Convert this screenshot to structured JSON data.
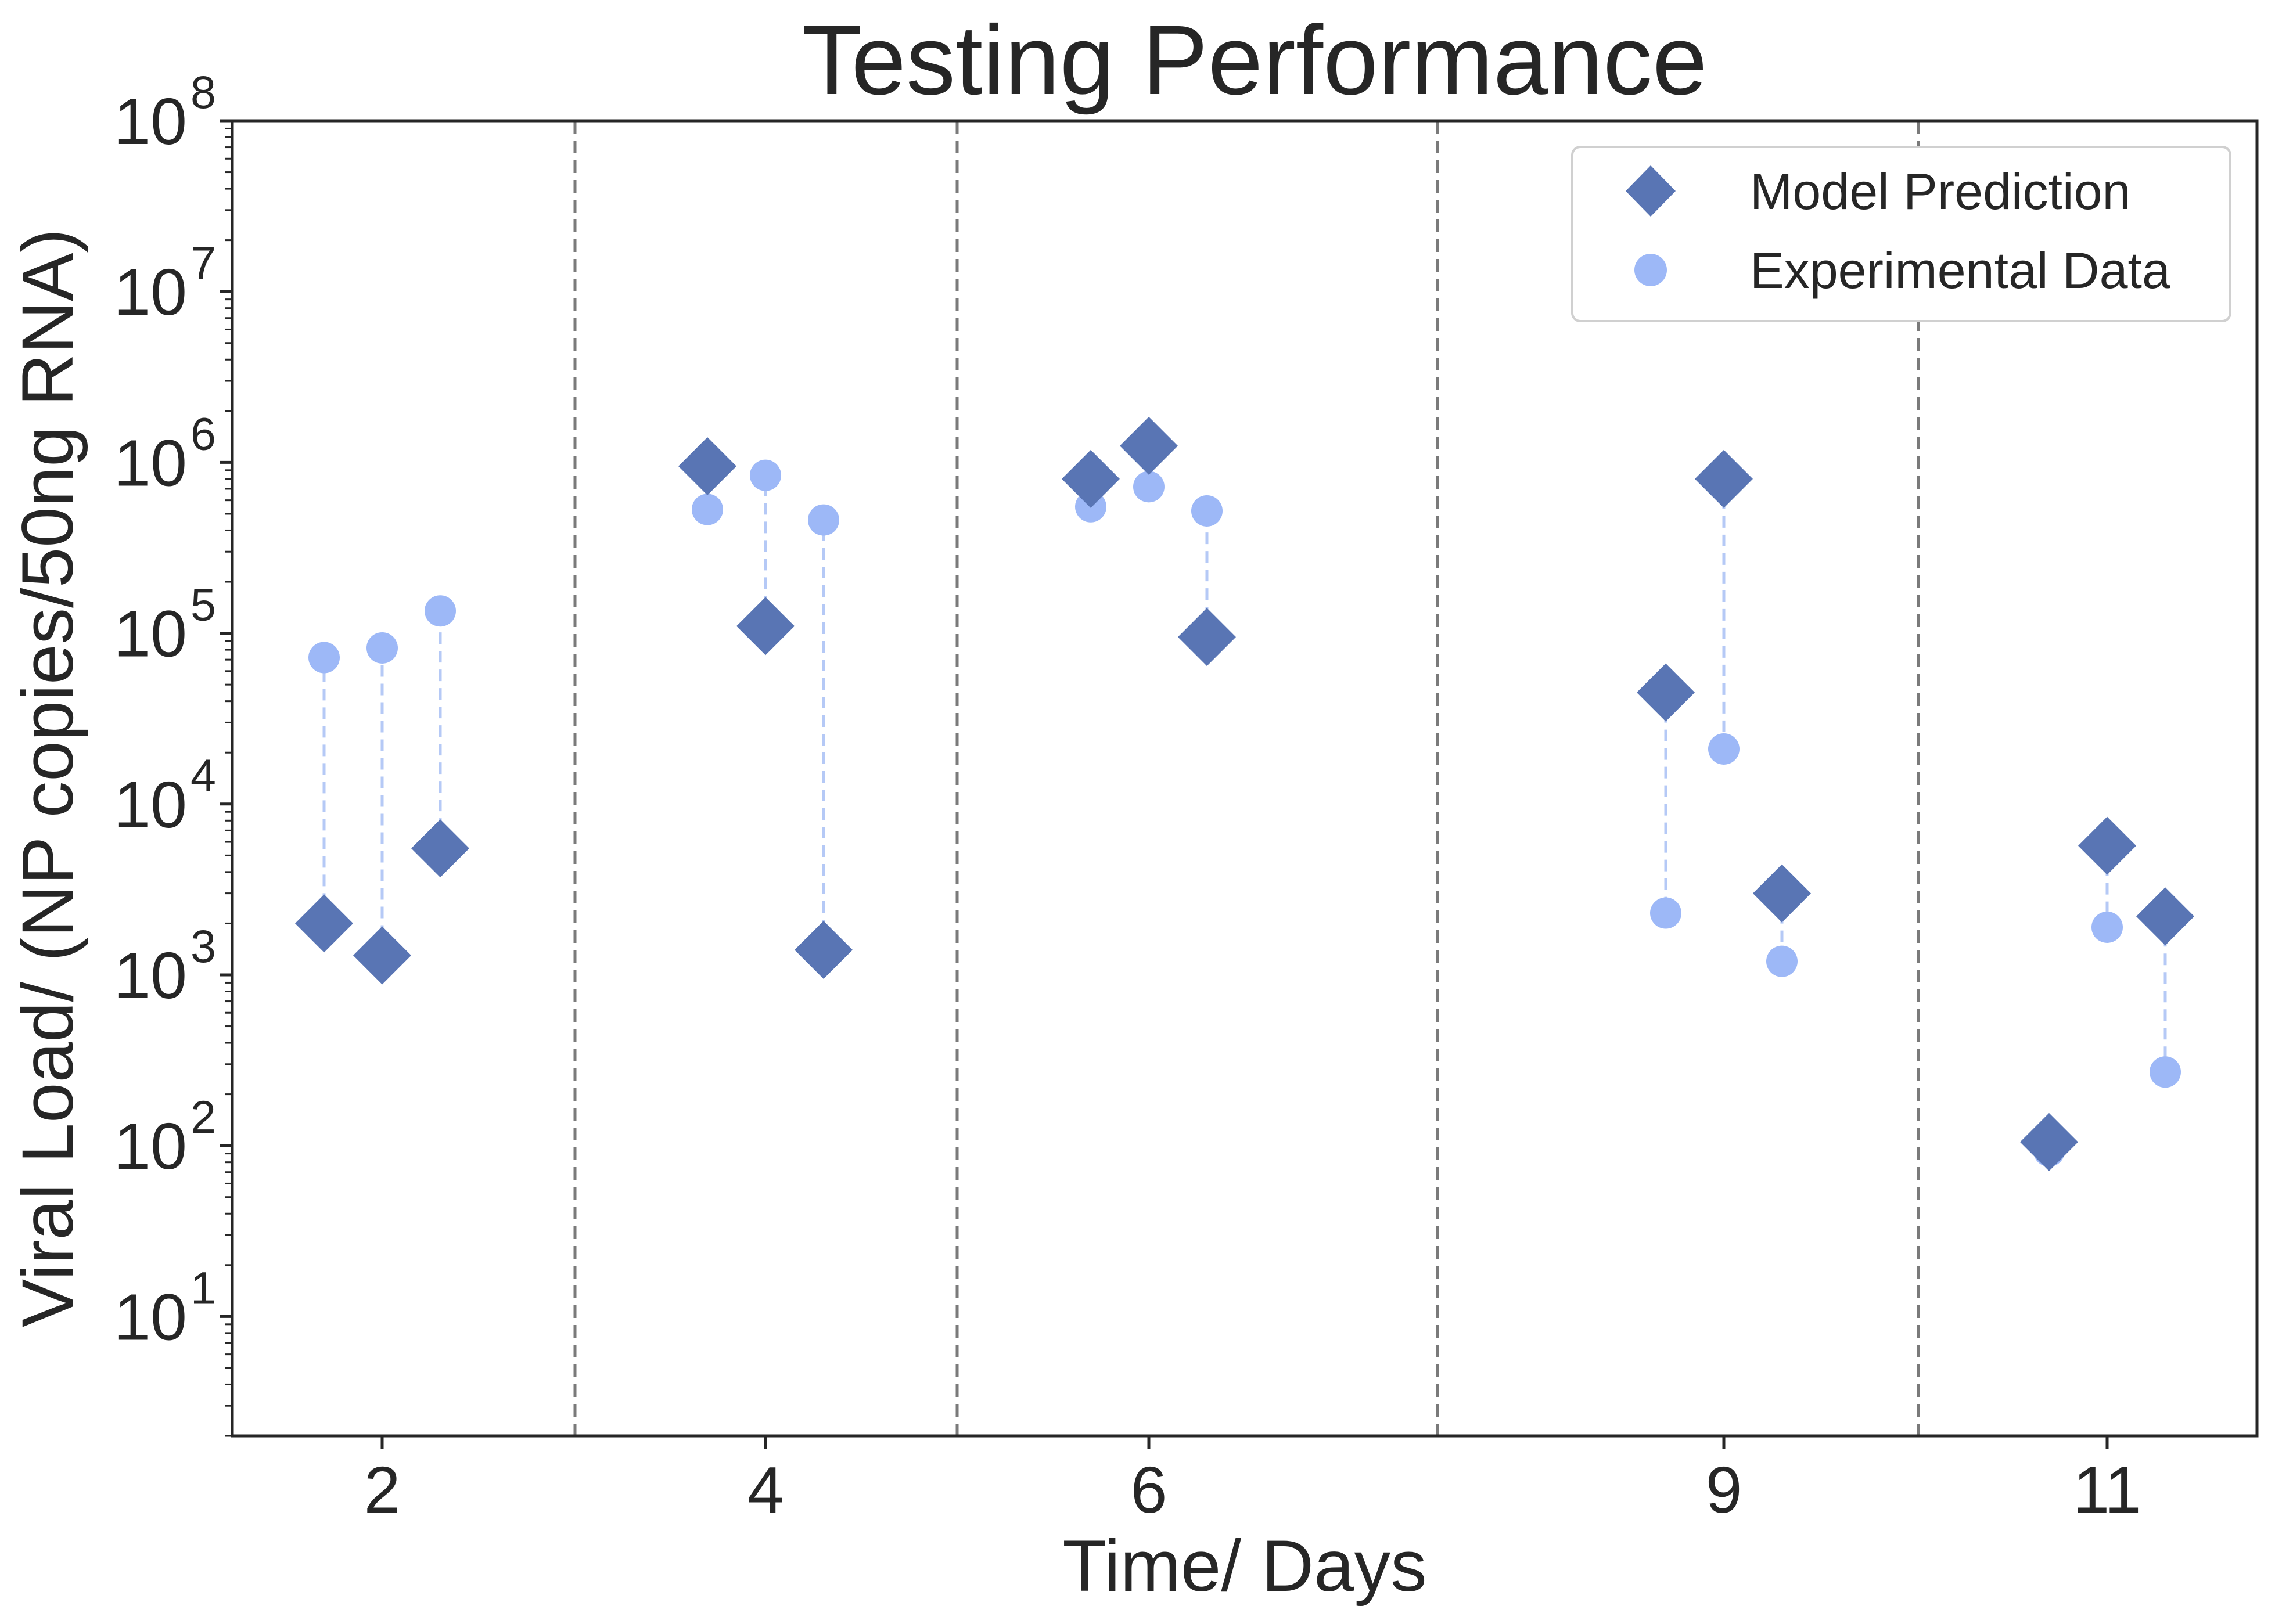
{
  "chart_data": {
    "type": "scatter",
    "title": "Testing Performance",
    "xlabel": "Time/ Days",
    "ylabel": "Viral Load/ (NP copies/50ng RNA)",
    "yscale": "log",
    "ylim": [
      2,
      100000000
    ],
    "y_tick_base": "10",
    "y_tick_exponents": [
      "1",
      "2",
      "3",
      "4",
      "5",
      "6",
      "7",
      "8"
    ],
    "categories": [
      "2",
      "4",
      "6",
      "9",
      "11"
    ],
    "grid": false,
    "legend_position": "top-right",
    "colors": {
      "model": "#5975b4",
      "experimental": "#9db8f7",
      "connector": "#b5c9f6",
      "separator": "#7a7a7a"
    },
    "series": [
      {
        "name": "Model Prediction",
        "marker": "diamond",
        "groups": [
          [
            2000,
            1300,
            5500
          ],
          [
            950000,
            110000,
            1400
          ],
          [
            800000,
            1250000,
            95000
          ],
          [
            45000,
            800000,
            3000
          ],
          [
            105,
            5700,
            2200
          ]
        ]
      },
      {
        "name": "Experimental Data",
        "marker": "circle",
        "groups": [
          [
            72000,
            82000,
            135000
          ],
          [
            530000,
            840000,
            460000
          ],
          [
            550000,
            720000,
            520000
          ],
          [
            2300,
            21000,
            1200
          ],
          [
            93,
            1900,
            270
          ]
        ]
      }
    ]
  }
}
